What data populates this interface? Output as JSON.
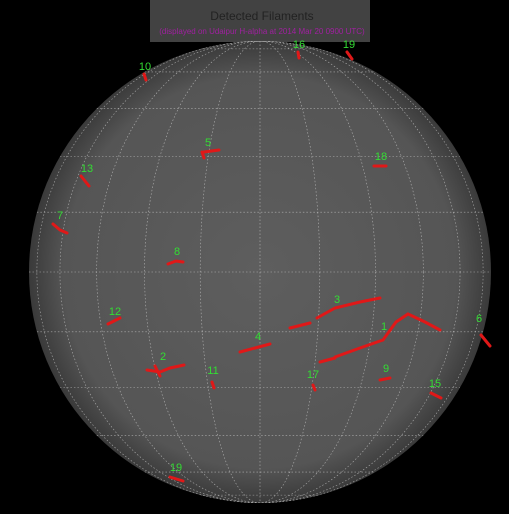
{
  "title": "Detected Filaments",
  "subtitle": "(displayed on Udaipur H-alpha at 2014 Mar 20 0900 UTC)",
  "filaments": [
    {
      "label": "10"
    },
    {
      "label": "16"
    },
    {
      "label": "19"
    },
    {
      "label": "5"
    },
    {
      "label": "18"
    },
    {
      "label": "13"
    },
    {
      "label": "7"
    },
    {
      "label": "8"
    },
    {
      "label": "3"
    },
    {
      "label": "12"
    },
    {
      "label": "6"
    },
    {
      "label": "1"
    },
    {
      "label": "4"
    },
    {
      "label": "2"
    },
    {
      "label": "11"
    },
    {
      "label": "17"
    },
    {
      "label": "9"
    },
    {
      "label": "15"
    },
    {
      "label": "19"
    }
  ]
}
